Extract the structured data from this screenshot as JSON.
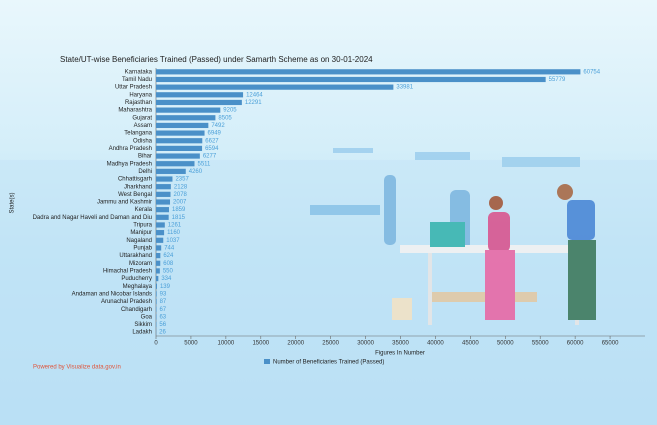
{
  "chart_data": {
    "type": "bar",
    "orientation": "horizontal",
    "title": "State/UT-wise Beneficiaries Trained (Passed) under Samarth Scheme as on 30-01-2024",
    "xlabel": "Figures In Number",
    "ylabel": "State(s)",
    "footer": "Powered by Visualize data.gov.in",
    "categories": [
      "Karnataka",
      "Tamil Nadu",
      "Uttar Pradesh",
      "Haryana",
      "Rajasthan",
      "Maharashtra",
      "Gujarat",
      "Assam",
      "Telangana",
      "Odisha",
      "Andhra Pradesh",
      "Bihar",
      "Madhya Pradesh",
      "Delhi",
      "Chhattisgarh",
      "Jharkhand",
      "West Bengal",
      "Jammu and Kashmir",
      "Kerala",
      "Dadra and Nagar Haveli and Daman and Diu",
      "Tripura",
      "Manipur",
      "Nagaland",
      "Punjab",
      "Uttarakhand",
      "Mizoram",
      "Himachal Pradesh",
      "Puducherry",
      "Meghalaya",
      "Andaman and Nicobar Islands",
      "Arunachal Pradesh",
      "Chandigarh",
      "Goa",
      "Sikkim",
      "Ladakh"
    ],
    "series": [
      {
        "name": "Number of Beneficiaries Trained (Passed)",
        "color": "#4a90c8",
        "values": [
          60754,
          55779,
          33981,
          12464,
          12291,
          9205,
          8505,
          7492,
          6949,
          6627,
          6594,
          6277,
          5511,
          4260,
          2357,
          2128,
          2078,
          2007,
          1859,
          1815,
          1261,
          1160,
          1037,
          744,
          624,
          608,
          550,
          334,
          139,
          93,
          87,
          67,
          63,
          56,
          26
        ]
      }
    ],
    "xlim": [
      0,
      70000
    ],
    "xticks": [
      0,
      5000,
      10000,
      15000,
      20000,
      25000,
      30000,
      35000,
      40000,
      45000,
      50000,
      55000,
      60000,
      65000
    ]
  }
}
